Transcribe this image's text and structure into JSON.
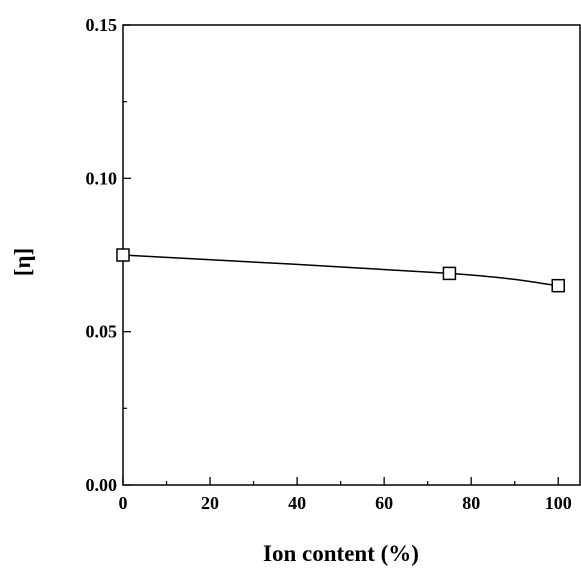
{
  "chart_data": {
    "type": "line",
    "title": "",
    "xlabel": "Ion content (%)",
    "ylabel": "[η]",
    "xlim": [
      0,
      105
    ],
    "ylim": [
      0.0,
      0.15
    ],
    "x_ticks": [
      0,
      20,
      40,
      60,
      80,
      100
    ],
    "x_tick_labels": [
      "0",
      "20",
      "40",
      "60",
      "80",
      "100"
    ],
    "y_ticks": [
      0.0,
      0.05,
      0.1,
      0.15
    ],
    "y_tick_labels": [
      "0.00",
      "0.05",
      "0.10",
      "0.15"
    ],
    "grid": false,
    "legend": "none",
    "marker": "open-square",
    "series": [
      {
        "x": [
          0,
          75,
          100
        ],
        "y": [
          0.075,
          0.069,
          0.065
        ]
      }
    ]
  }
}
